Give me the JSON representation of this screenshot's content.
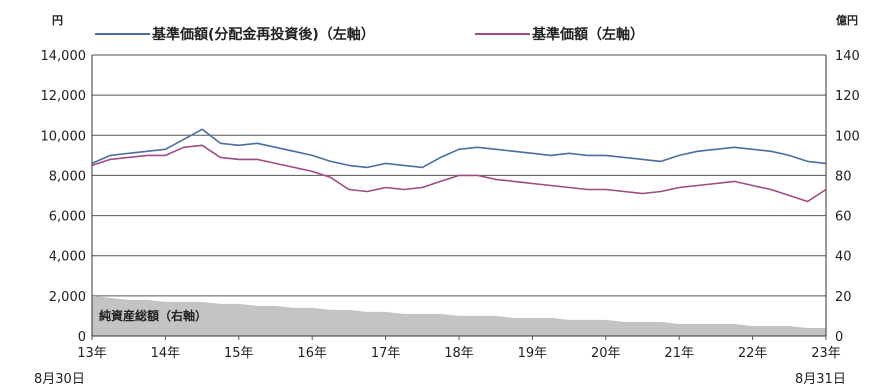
{
  "chart_data": {
    "type": "line",
    "left_axis": {
      "unit": "円",
      "ylim": [
        0,
        14000
      ],
      "ticks": [
        "0",
        "2,000",
        "4,000",
        "6,000",
        "8,000",
        "10,000",
        "12,000",
        "14,000"
      ]
    },
    "right_axis": {
      "unit": "億円",
      "ylim": [
        0,
        140
      ],
      "ticks": [
        "0",
        "20",
        "40",
        "60",
        "80",
        "100",
        "120",
        "140"
      ]
    },
    "x_ticks": [
      "13年",
      "14年",
      "15年",
      "16年",
      "17年",
      "18年",
      "19年",
      "20年",
      "21年",
      "22年",
      "23年"
    ],
    "start_date_label": "8月30日",
    "end_date_label": "8月31日",
    "grid": true,
    "legend_position": "top",
    "x": [
      "2013-08-30",
      "2013-12",
      "2014-03",
      "2014-06",
      "2014-09",
      "2014-12",
      "2015-03",
      "2015-06",
      "2015-09",
      "2015-12",
      "2016-03",
      "2016-06",
      "2016-09",
      "2016-12",
      "2017-03",
      "2017-06",
      "2017-09",
      "2017-12",
      "2018-03",
      "2018-06",
      "2018-09",
      "2018-12",
      "2019-03",
      "2019-06",
      "2019-09",
      "2019-12",
      "2020-03",
      "2020-06",
      "2020-09",
      "2020-12",
      "2021-03",
      "2021-06",
      "2021-09",
      "2021-12",
      "2022-03",
      "2022-06",
      "2022-09",
      "2022-12",
      "2023-03",
      "2023-06",
      "2023-08-31"
    ],
    "series": [
      {
        "name": "基準価額(分配金再投資後)（左軸）",
        "axis": "left",
        "color": "#4a6e9e",
        "values": [
          8600,
          9000,
          9100,
          9200,
          9300,
          9800,
          10300,
          9600,
          9500,
          9600,
          9400,
          9200,
          9000,
          8700,
          8500,
          8400,
          8600,
          8500,
          8400,
          8900,
          9300,
          9400,
          9300,
          9200,
          9100,
          9000,
          9100,
          9000,
          9000,
          8900,
          8800,
          8700,
          9000,
          9200,
          9300,
          9400,
          9300,
          9200,
          9000,
          8700,
          8600
        ]
      },
      {
        "name": "基準価額（左軸）",
        "axis": "left",
        "color": "#9e4a86",
        "values": [
          8500,
          8800,
          8900,
          9000,
          9000,
          9400,
          9500,
          8900,
          8800,
          8800,
          8600,
          8400,
          8200,
          7900,
          7300,
          7200,
          7400,
          7300,
          7400,
          7700,
          8000,
          8000,
          7800,
          7700,
          7600,
          7500,
          7400,
          7300,
          7300,
          7200,
          7100,
          7200,
          7400,
          7500,
          7600,
          7700,
          7500,
          7300,
          7000,
          6700,
          7300
        ]
      },
      {
        "name": "純資産総額（右軸）",
        "axis": "right",
        "color": "#c4c4c4",
        "type": "area",
        "values": [
          20,
          19,
          18,
          18,
          17,
          17,
          17,
          16,
          16,
          15,
          15,
          14,
          14,
          13,
          13,
          12,
          12,
          11,
          11,
          11,
          10,
          10,
          10,
          9,
          9,
          9,
          8,
          8,
          8,
          7,
          7,
          7,
          6,
          6,
          6,
          6,
          5,
          5,
          5,
          4,
          4
        ]
      }
    ]
  }
}
